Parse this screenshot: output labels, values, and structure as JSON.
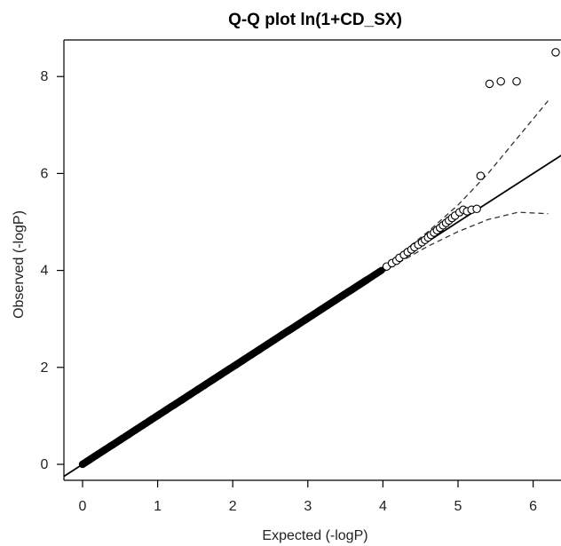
{
  "chart_data": {
    "type": "scatter",
    "title": "Q-Q plot ln(1+CD_SX)",
    "xlabel": "Expected (-logP)",
    "ylabel": "Observed (-logP)",
    "xlim": [
      0,
      6.3
    ],
    "ylim": [
      0,
      8.7
    ],
    "x_ticks": [
      "0",
      "1",
      "2",
      "3",
      "4",
      "5",
      "6"
    ],
    "y_ticks": [
      "0",
      "2",
      "4",
      "6",
      "8"
    ],
    "grid": false,
    "legend": "none",
    "series": [
      {
        "role": "observed-points",
        "marker": "open-circle",
        "x": [
          4.05,
          4.12,
          4.18,
          4.22,
          4.28,
          4.33,
          4.38,
          4.42,
          4.47,
          4.52,
          4.56,
          4.6,
          4.64,
          4.68,
          4.72,
          4.76,
          4.8,
          4.84,
          4.88,
          4.92,
          4.96,
          5.02,
          5.07,
          5.12,
          5.18,
          5.25,
          5.3,
          5.42,
          5.57,
          5.78,
          6.3
        ],
        "y": [
          4.08,
          4.15,
          4.2,
          4.26,
          4.32,
          4.38,
          4.43,
          4.48,
          4.53,
          4.58,
          4.63,
          4.68,
          4.73,
          4.78,
          4.83,
          4.88,
          4.93,
          4.98,
          5.03,
          5.08,
          5.13,
          5.2,
          5.25,
          5.22,
          5.25,
          5.27,
          5.95,
          7.85,
          7.9,
          7.9,
          8.5
        ]
      },
      {
        "role": "expected-line",
        "style": "solid",
        "x": [
          0,
          6.3
        ],
        "y": [
          0,
          6.3
        ]
      },
      {
        "role": "upper-confidence-band",
        "style": "dashed",
        "x": [
          3.8,
          4.2,
          4.6,
          5.0,
          5.4,
          5.8,
          6.2
        ],
        "y": [
          3.85,
          4.3,
          4.8,
          5.35,
          6.0,
          6.75,
          7.5
        ]
      },
      {
        "role": "lower-confidence-band",
        "style": "dashed",
        "x": [
          3.8,
          4.2,
          4.6,
          5.0,
          5.4,
          5.8,
          6.2
        ],
        "y": [
          3.78,
          4.15,
          4.5,
          4.8,
          5.05,
          5.2,
          5.17
        ]
      }
    ],
    "bulk_diagonal_points": {
      "x_range": [
        0,
        4.0
      ],
      "marker": "filled-circle"
    }
  }
}
